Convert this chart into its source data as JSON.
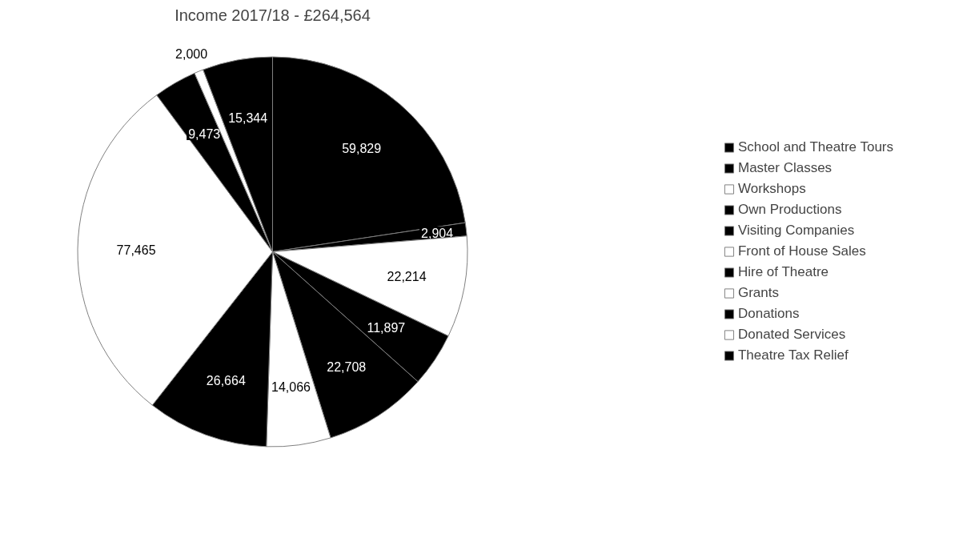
{
  "chart_data": {
    "type": "pie",
    "title": "Income 2017/18 - £264,564",
    "categories": [
      "School and Theatre Tours",
      "Master Classes",
      "Workshops",
      "Own Productions",
      "Visiting Companies",
      "Front of House Sales",
      "Hire of Theatre",
      "Grants",
      "Donations",
      "Donated Services",
      "Theatre Tax Relief"
    ],
    "values": [
      59829,
      2904,
      22214,
      11897,
      22708,
      14066,
      26664,
      77465,
      9473,
      2000,
      15344
    ],
    "value_labels": [
      "59,829",
      "2,904",
      "22,214",
      "11,897",
      "22,708",
      "14,066",
      "26,664",
      "77,465",
      "9,473",
      "2,000",
      "15,344"
    ],
    "colors": [
      "#000000",
      "#000000",
      "#ffffff",
      "#000000",
      "#000000",
      "#ffffff",
      "#000000",
      "#ffffff",
      "#000000",
      "#ffffff",
      "#000000"
    ],
    "legend": "right"
  }
}
